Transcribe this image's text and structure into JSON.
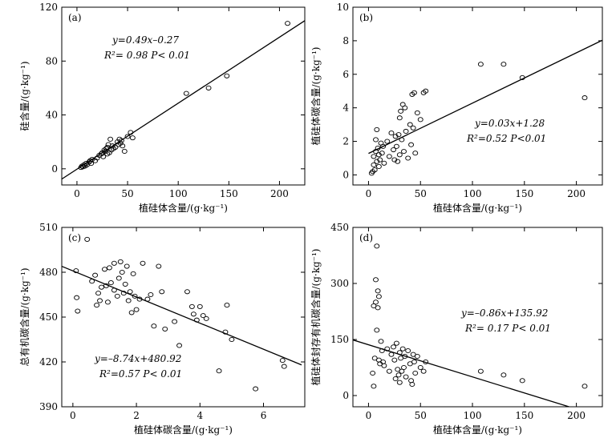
{
  "chart_data": [
    {
      "type": "scatter",
      "panel_label": "(a)",
      "xlabel": "植硅体含量/(g·kg⁻¹)",
      "ylabel": "硅含量/(g·kg⁻¹)",
      "xlim": [
        -15,
        225
      ],
      "ylim": [
        -12,
        120
      ],
      "x_ticks": [
        "0",
        "50",
        "100",
        "150",
        "200"
      ],
      "y_ticks": [
        "0",
        "40",
        "80",
        "120"
      ],
      "x_tick_values": [
        0,
        50,
        100,
        150,
        200
      ],
      "y_tick_values": [
        0,
        40,
        80,
        120
      ],
      "equation": "y=0.49x–0.27",
      "stats": "R²= 0.98  P< 0.01",
      "fit": {
        "slope": 0.49,
        "intercept": -0.27,
        "x_range": [
          -15,
          225
        ]
      },
      "points": [
        [
          4,
          1
        ],
        [
          5,
          2
        ],
        [
          6,
          1.5
        ],
        [
          7,
          3
        ],
        [
          8,
          2
        ],
        [
          9,
          4
        ],
        [
          10,
          3
        ],
        [
          12,
          5
        ],
        [
          13,
          6
        ],
        [
          14,
          4
        ],
        [
          15,
          7
        ],
        [
          18,
          6
        ],
        [
          20,
          8
        ],
        [
          22,
          10
        ],
        [
          24,
          11
        ],
        [
          25,
          12
        ],
        [
          26,
          9
        ],
        [
          27,
          14
        ],
        [
          28,
          13
        ],
        [
          29,
          15
        ],
        [
          30,
          16
        ],
        [
          30,
          11
        ],
        [
          31,
          18
        ],
        [
          32,
          12
        ],
        [
          33,
          22
        ],
        [
          34,
          14
        ],
        [
          35,
          17
        ],
        [
          36,
          15
        ],
        [
          38,
          16
        ],
        [
          40,
          20
        ],
        [
          41,
          18
        ],
        [
          42,
          22
        ],
        [
          43,
          19
        ],
        [
          44,
          21
        ],
        [
          45,
          17
        ],
        [
          47,
          13
        ],
        [
          50,
          24
        ],
        [
          53,
          27
        ],
        [
          55,
          23
        ],
        [
          108,
          56
        ],
        [
          130,
          60
        ],
        [
          148,
          69
        ],
        [
          208,
          108
        ]
      ]
    },
    {
      "type": "scatter",
      "panel_label": "(b)",
      "xlabel": "植硅体含量/(g·kg⁻¹)",
      "ylabel": "植硅体碳含量/(g·kg⁻¹)",
      "xlim": [
        -15,
        225
      ],
      "ylim": [
        -0.6,
        10
      ],
      "x_ticks": [
        "0",
        "50",
        "100",
        "150",
        "200"
      ],
      "y_ticks": [
        "0",
        "2",
        "4",
        "6",
        "8",
        "10"
      ],
      "x_tick_values": [
        0,
        50,
        100,
        150,
        200
      ],
      "y_tick_values": [
        0,
        2,
        4,
        6,
        8,
        10
      ],
      "equation": "y=0.03x+1.28",
      "stats": "R²=0.52  P<0.01",
      "fit": {
        "slope": 0.03,
        "intercept": 1.28,
        "x_range": [
          0,
          225
        ]
      },
      "points": [
        [
          3,
          0.1
        ],
        [
          4,
          0.2
        ],
        [
          5,
          0.6
        ],
        [
          5,
          1.1
        ],
        [
          6,
          0.3
        ],
        [
          7,
          1.4
        ],
        [
          7,
          2.1
        ],
        [
          8,
          0.8
        ],
        [
          8,
          2.7
        ],
        [
          9,
          1.6
        ],
        [
          10,
          0.5
        ],
        [
          10,
          1.2
        ],
        [
          11,
          0.9
        ],
        [
          12,
          1.9
        ],
        [
          13,
          1.3
        ],
        [
          14,
          1.7
        ],
        [
          15,
          0.7
        ],
        [
          18,
          2.0
        ],
        [
          20,
          1.1
        ],
        [
          22,
          2.5
        ],
        [
          24,
          1.5
        ],
        [
          25,
          0.9
        ],
        [
          26,
          2.3
        ],
        [
          27,
          1.7
        ],
        [
          28,
          0.8
        ],
        [
          29,
          2.4
        ],
        [
          30,
          3.4
        ],
        [
          30,
          1.2
        ],
        [
          31,
          3.8
        ],
        [
          32,
          2.1
        ],
        [
          33,
          4.2
        ],
        [
          34,
          1.4
        ],
        [
          35,
          4.0
        ],
        [
          36,
          2.6
        ],
        [
          38,
          1.0
        ],
        [
          40,
          3.0
        ],
        [
          41,
          1.8
        ],
        [
          42,
          4.8
        ],
        [
          43,
          2.8
        ],
        [
          44,
          4.9
        ],
        [
          45,
          1.3
        ],
        [
          47,
          3.7
        ],
        [
          50,
          3.3
        ],
        [
          53,
          4.9
        ],
        [
          55,
          5.0
        ],
        [
          108,
          6.6
        ],
        [
          130,
          6.6
        ],
        [
          148,
          5.8
        ],
        [
          208,
          4.6
        ]
      ]
    },
    {
      "type": "scatter",
      "panel_label": "(c)",
      "xlabel": "植硅体碳含量/(g·kg⁻¹)",
      "ylabel": "总有机碳含量/(g·kg⁻¹)",
      "xlim": [
        -0.35,
        7.3
      ],
      "ylim": [
        390,
        510
      ],
      "x_ticks": [
        "0",
        "2",
        "4",
        "6"
      ],
      "y_ticks": [
        "390",
        "420",
        "450",
        "480",
        "510"
      ],
      "x_tick_values": [
        0,
        2,
        4,
        6
      ],
      "y_tick_values": [
        390,
        420,
        450,
        480,
        510
      ],
      "equation": "y=–8.74x+480.92",
      "stats": "R²=0.57  P< 0.01",
      "fit": {
        "slope": -8.74,
        "intercept": 480.92,
        "x_range": [
          -0.35,
          7.2
        ]
      },
      "points": [
        [
          0.1,
          481
        ],
        [
          0.12,
          463
        ],
        [
          0.15,
          454
        ],
        [
          0.45,
          502
        ],
        [
          0.6,
          474
        ],
        [
          0.7,
          478
        ],
        [
          0.75,
          458
        ],
        [
          0.8,
          466
        ],
        [
          0.85,
          461
        ],
        [
          0.9,
          470
        ],
        [
          1.0,
          482
        ],
        [
          1.05,
          471
        ],
        [
          1.1,
          460
        ],
        [
          1.15,
          483
        ],
        [
          1.2,
          473
        ],
        [
          1.3,
          486
        ],
        [
          1.3,
          468
        ],
        [
          1.4,
          464
        ],
        [
          1.45,
          476
        ],
        [
          1.5,
          487
        ],
        [
          1.55,
          480
        ],
        [
          1.6,
          466
        ],
        [
          1.65,
          472
        ],
        [
          1.7,
          484
        ],
        [
          1.75,
          461
        ],
        [
          1.8,
          467
        ],
        [
          1.85,
          453
        ],
        [
          1.9,
          479
        ],
        [
          1.95,
          464
        ],
        [
          2.0,
          455
        ],
        [
          2.1,
          462
        ],
        [
          2.2,
          486
        ],
        [
          2.35,
          462
        ],
        [
          2.45,
          465
        ],
        [
          2.55,
          444
        ],
        [
          2.7,
          484
        ],
        [
          2.8,
          467
        ],
        [
          2.9,
          442
        ],
        [
          3.2,
          447
        ],
        [
          3.35,
          431
        ],
        [
          3.6,
          467
        ],
        [
          3.75,
          457
        ],
        [
          3.8,
          452
        ],
        [
          3.9,
          448
        ],
        [
          4.0,
          457
        ],
        [
          4.1,
          451
        ],
        [
          4.2,
          449
        ],
        [
          4.6,
          414
        ],
        [
          4.8,
          440
        ],
        [
          4.85,
          458
        ],
        [
          5.0,
          435
        ],
        [
          5.75,
          402
        ],
        [
          6.6,
          421
        ],
        [
          6.65,
          417
        ]
      ]
    },
    {
      "type": "scatter",
      "panel_label": "(d)",
      "xlabel": "植硅体含量/(g·kg⁻¹)",
      "ylabel": "植硅体封存有机碳含量/(g·kg⁻¹)",
      "xlim": [
        -15,
        225
      ],
      "ylim": [
        -30,
        450
      ],
      "x_ticks": [
        "0",
        "50",
        "100",
        "150",
        "200"
      ],
      "y_ticks": [
        "0",
        "150",
        "300",
        "450"
      ],
      "x_tick_values": [
        0,
        50,
        100,
        150,
        200
      ],
      "y_tick_values": [
        0,
        150,
        300,
        450
      ],
      "equation": "y=–0.86x+135.92",
      "stats": "R²= 0.17  P< 0.01",
      "fit": {
        "slope": -0.86,
        "intercept": 135.92,
        "x_range": [
          -15,
          200
        ]
      },
      "points": [
        [
          4,
          60
        ],
        [
          5,
          25
        ],
        [
          5,
          240
        ],
        [
          6,
          100
        ],
        [
          7,
          250
        ],
        [
          7,
          310
        ],
        [
          8,
          400
        ],
        [
          8,
          175
        ],
        [
          9,
          235
        ],
        [
          9,
          280
        ],
        [
          10,
          95
        ],
        [
          10,
          265
        ],
        [
          11,
          85
        ],
        [
          12,
          145
        ],
        [
          13,
          120
        ],
        [
          14,
          90
        ],
        [
          15,
          80
        ],
        [
          18,
          125
        ],
        [
          20,
          65
        ],
        [
          22,
          110
        ],
        [
          24,
          130
        ],
        [
          25,
          95
        ],
        [
          26,
          45
        ],
        [
          27,
          140
        ],
        [
          28,
          70
        ],
        [
          29,
          55
        ],
        [
          30,
          115
        ],
        [
          30,
          35
        ],
        [
          31,
          100
        ],
        [
          32,
          65
        ],
        [
          33,
          125
        ],
        [
          34,
          75
        ],
        [
          35,
          105
        ],
        [
          36,
          50
        ],
        [
          38,
          120
        ],
        [
          40,
          85
        ],
        [
          41,
          40
        ],
        [
          42,
          30
        ],
        [
          43,
          110
        ],
        [
          44,
          90
        ],
        [
          45,
          60
        ],
        [
          47,
          105
        ],
        [
          50,
          75
        ],
        [
          53,
          65
        ],
        [
          55,
          90
        ],
        [
          108,
          65
        ],
        [
          130,
          55
        ],
        [
          148,
          40
        ],
        [
          208,
          25
        ]
      ]
    }
  ]
}
